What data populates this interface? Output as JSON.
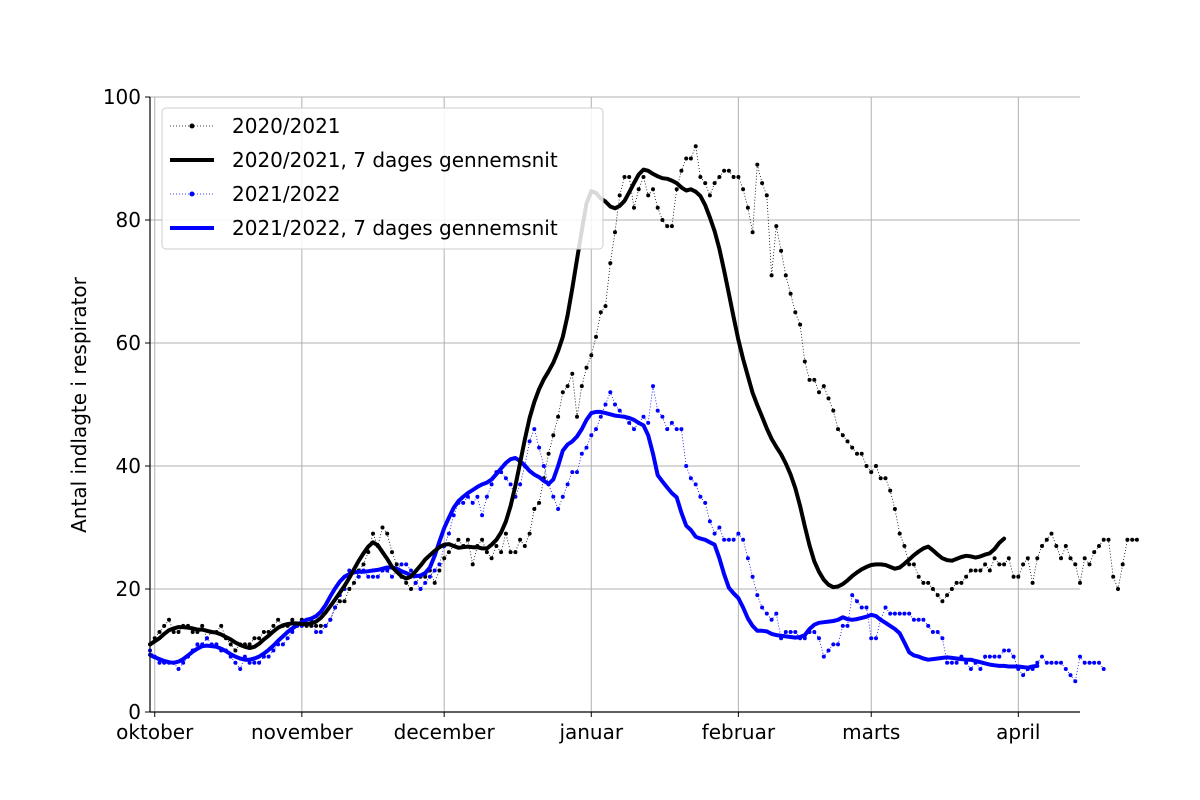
{
  "chart_data": {
    "type": "line",
    "title": "",
    "xlabel": "",
    "ylabel": "Antal indlagte i respirator",
    "ylim": [
      0,
      100
    ],
    "y_ticks": [
      0,
      20,
      40,
      60,
      80,
      100
    ],
    "x_ticks": [
      {
        "day": 1,
        "label": "oktober"
      },
      {
        "day": 32,
        "label": "november"
      },
      {
        "day": 62,
        "label": "december"
      },
      {
        "day": 93,
        "label": "januar"
      },
      {
        "day": 124,
        "label": "februar"
      },
      {
        "day": 152,
        "label": "marts"
      },
      {
        "day": 183,
        "label": "april"
      }
    ],
    "grid": true,
    "legend_position": "top-left",
    "series": [
      {
        "name": "2020/2021",
        "color": "#000000",
        "style": "dotted-markers",
        "x_start": 0,
        "values": [
          11,
          12,
          13,
          14,
          15,
          13,
          13,
          14,
          14,
          13,
          13,
          14,
          12,
          13,
          13,
          14,
          12,
          11,
          10,
          11,
          11,
          11,
          12,
          12,
          13,
          13,
          14,
          15,
          14,
          14,
          15,
          14,
          15,
          14,
          14,
          14,
          14,
          14,
          15,
          17,
          18,
          18,
          20,
          21,
          23,
          24,
          26,
          29,
          27,
          30,
          29,
          26,
          24,
          22,
          21,
          20,
          21,
          22,
          22,
          23,
          21,
          23,
          25,
          26,
          27,
          28,
          27,
          28,
          24,
          27,
          28,
          26,
          25,
          27,
          26,
          29,
          26,
          26,
          28,
          27,
          29,
          33,
          34,
          38,
          42,
          45,
          48,
          52,
          53,
          55,
          48,
          53,
          56,
          58,
          61,
          65,
          66,
          73,
          78,
          84,
          87,
          87,
          82,
          85,
          87,
          84,
          85,
          82,
          80,
          79,
          79,
          85,
          88,
          90,
          90,
          92,
          87,
          86,
          84,
          86,
          87,
          88,
          88,
          87,
          87,
          85,
          82,
          78,
          89,
          86,
          84,
          71,
          79,
          75,
          71,
          68,
          65,
          63,
          57,
          54,
          54,
          52,
          53,
          51,
          49,
          46,
          45,
          44,
          43,
          42,
          42,
          40,
          39,
          40,
          38,
          38,
          36,
          33,
          29,
          27,
          24,
          24,
          22,
          21,
          21,
          20,
          19,
          18,
          19,
          20,
          21,
          21,
          22,
          23,
          23,
          23,
          24,
          23,
          25,
          24,
          24,
          25,
          22,
          22,
          24,
          25,
          21,
          25,
          27,
          28,
          29,
          27,
          25,
          27,
          25,
          24,
          21,
          25,
          24,
          26,
          27,
          28,
          28,
          22,
          20,
          24,
          28,
          28,
          28
        ]
      },
      {
        "name": "2020/2021, 7 dages gennemsnit",
        "color": "#000000",
        "style": "thick-line",
        "x_start": 0,
        "values": [
          11.0,
          11.5,
          12.0,
          12.7,
          13.3,
          13.6,
          13.8,
          13.8,
          13.7,
          13.6,
          13.4,
          13.4,
          13.2,
          13.0,
          12.9,
          12.6,
          12.2,
          11.8,
          11.3,
          10.9,
          10.6,
          10.4,
          10.6,
          11.1,
          11.8,
          12.4,
          13.1,
          13.7,
          14.1,
          14.3,
          14.4,
          14.4,
          14.3,
          14.3,
          14.4,
          14.7,
          15.3,
          16.2,
          17.2,
          18.3,
          19.4,
          20.5,
          21.8,
          23.2,
          24.6,
          25.8,
          26.9,
          27.6,
          27.1,
          26.0,
          24.9,
          23.6,
          22.8,
          22.1,
          21.7,
          22.0,
          22.9,
          23.8,
          24.8,
          25.5,
          26.2,
          26.8,
          27.2,
          27.3,
          27.0,
          26.7,
          26.8,
          26.9,
          26.8,
          26.8,
          26.6,
          26.6,
          27.2,
          28.0,
          29.2,
          31.0,
          33.5,
          36.8,
          40.5,
          44.3,
          47.8,
          50.4,
          52.5,
          54.1,
          55.4,
          56.8,
          58.7,
          61.0,
          64.5,
          68.9,
          73.6,
          78.3,
          82.7,
          84.7,
          84.4,
          83.5,
          83.0,
          82.2,
          81.9,
          82.3,
          83.1,
          84.5,
          86.0,
          87.4,
          88.2,
          88.0,
          87.5,
          87.1,
          86.8,
          86.7,
          86.4,
          86.0,
          85.3,
          84.8,
          85.0,
          84.6,
          83.9,
          82.4,
          80.4,
          78.2,
          75.3,
          71.8,
          68.0,
          64.2,
          60.5,
          57.4,
          54.6,
          51.9,
          49.9,
          48.0,
          46.1,
          44.4,
          43.1,
          41.9,
          40.4,
          38.6,
          36.4,
          33.5,
          30.2,
          27.1,
          24.5,
          22.8,
          21.5,
          20.7,
          20.3,
          20.4,
          20.8,
          21.4,
          22.1,
          22.7,
          23.2,
          23.6,
          23.9,
          24.0,
          24.0,
          23.9,
          23.6,
          23.3,
          23.5,
          24.1,
          24.8,
          25.5,
          26.1,
          26.6,
          26.9,
          26.3,
          25.6,
          25.0,
          24.7,
          24.6,
          24.9,
          25.2,
          25.4,
          25.3,
          25.1,
          25.3,
          25.6,
          25.8,
          26.5,
          27.5,
          28.2
        ]
      },
      {
        "name": "2021/2022",
        "color": "#0000ff",
        "style": "dotted-markers",
        "x_start": 0,
        "values": [
          10,
          9,
          8,
          8,
          8,
          8,
          7,
          8,
          9,
          10,
          11,
          11,
          12,
          11,
          11,
          10,
          10,
          9,
          8,
          7,
          9,
          8,
          8,
          8,
          9,
          9,
          10,
          11,
          11,
          12,
          13,
          14,
          14,
          15,
          15,
          13,
          13,
          14,
          15,
          17,
          19,
          20,
          23,
          23,
          22,
          23,
          22,
          22,
          22,
          23,
          23,
          22,
          23,
          24,
          24,
          23,
          21,
          20,
          21,
          22,
          23,
          24,
          27,
          29,
          32,
          34,
          34,
          35,
          34,
          35,
          32,
          35,
          37,
          39,
          39,
          38,
          37,
          35,
          37,
          40,
          44,
          46,
          43,
          40,
          37,
          35,
          33,
          35,
          37,
          39,
          39,
          42,
          43,
          45,
          46,
          48,
          50,
          52,
          50,
          49,
          48,
          47,
          46,
          47,
          48,
          47,
          53,
          49,
          48,
          46,
          47,
          46,
          46,
          40,
          38,
          37,
          35,
          34,
          31,
          29,
          30,
          28,
          28,
          28,
          29,
          28,
          25,
          22,
          19,
          17,
          16,
          15,
          16,
          12,
          13,
          13,
          13,
          12,
          12,
          13,
          13,
          12,
          9,
          10,
          11,
          11,
          14,
          14,
          19,
          18,
          17,
          17,
          12,
          12,
          15,
          17,
          16,
          16,
          16,
          16,
          16,
          15,
          15,
          15,
          14,
          13,
          13,
          12,
          8,
          8,
          8,
          9,
          8,
          7,
          8,
          7,
          9,
          9,
          9,
          9,
          10,
          10,
          9,
          7,
          6,
          7,
          7,
          8,
          9,
          8,
          8,
          8,
          8,
          7,
          6,
          5,
          9,
          8,
          8,
          8,
          8,
          7
        ]
      },
      {
        "name": "2021/2022, 7 dages gennemsnit",
        "color": "#0000ff",
        "style": "thick-line",
        "x_start": 0,
        "values": [
          9.3,
          8.9,
          8.6,
          8.3,
          8.1,
          8.0,
          8.2,
          8.6,
          9.2,
          9.8,
          10.3,
          10.7,
          10.8,
          10.7,
          10.6,
          10.3,
          9.9,
          9.4,
          9.0,
          8.7,
          8.5,
          8.5,
          8.7,
          9.0,
          9.5,
          10.1,
          10.8,
          11.6,
          12.3,
          13.0,
          13.6,
          14.1,
          14.6,
          15.0,
          15.2,
          15.6,
          16.3,
          17.4,
          18.8,
          20.1,
          21.2,
          22.0,
          22.4,
          22.7,
          22.8,
          22.8,
          22.9,
          23.0,
          23.1,
          23.3,
          23.5,
          23.5,
          23.3,
          22.9,
          22.6,
          22.2,
          22.1,
          22.2,
          22.6,
          23.5,
          25.4,
          27.7,
          29.9,
          31.6,
          33.2,
          34.3,
          35.0,
          35.6,
          36.1,
          36.6,
          37.0,
          37.3,
          37.8,
          38.7,
          39.6,
          40.5,
          41.1,
          41.3,
          40.8,
          40.1,
          39.2,
          38.6,
          38.2,
          37.6,
          37.1,
          37.8,
          40.0,
          42.5,
          43.5,
          44.0,
          44.8,
          46.0,
          47.5,
          48.6,
          48.8,
          48.8,
          48.6,
          48.4,
          48.2,
          48.1,
          48.0,
          47.8,
          47.5,
          47.0,
          46.6,
          45.0,
          42.0,
          38.5,
          37.5,
          36.5,
          35.6,
          34.9,
          32.4,
          30.3,
          29.6,
          28.5,
          28.2,
          28.0,
          27.6,
          27.2,
          25.0,
          22.4,
          20.2,
          19.3,
          18.5,
          17.0,
          15.2,
          14.0,
          13.2,
          13.2,
          13.1,
          12.7,
          12.5,
          12.4,
          12.3,
          12.2,
          12.1,
          12.2,
          12.5,
          13.5,
          14.2,
          14.5,
          14.6,
          14.7,
          14.8,
          15.0,
          15.4,
          15.1,
          15.0,
          15.1,
          15.3,
          15.5,
          15.8,
          15.6,
          15.0,
          14.5,
          14.0,
          13.5,
          12.8,
          11.3,
          9.7,
          9.2,
          9.0,
          8.7,
          8.5,
          8.6,
          8.7,
          8.8,
          8.9,
          8.8,
          8.7,
          8.6,
          8.5,
          8.5,
          8.3,
          8.1,
          7.9,
          7.7,
          7.6,
          7.5,
          7.5,
          7.4,
          7.4,
          7.4,
          7.3,
          7.2,
          7.4,
          7.5
        ]
      }
    ]
  }
}
